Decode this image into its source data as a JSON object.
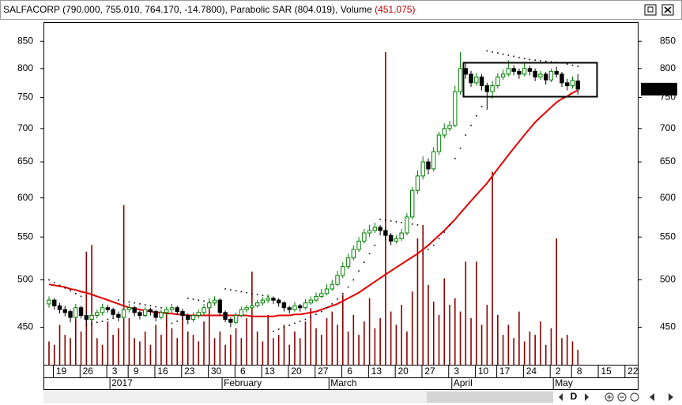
{
  "chart_data": {
    "type": "candlestick",
    "title": "SALFACORP (790.000, 755.010, 764.170, -14.7800), Parabolic SAR (804.019), Volume ",
    "title_volume": "(451,075)",
    "log_scale": true,
    "ylim": [
      414,
      887
    ],
    "yticks": [
      850,
      800,
      750,
      700,
      650,
      600,
      550,
      500,
      450
    ],
    "y2lim": [
      0,
      10300000
    ],
    "last_price": {
      "value": 764.17,
      "label": "764.170"
    },
    "toolbar_label": "D",
    "categories": [
      null,
      null,
      "19",
      null,
      null,
      null,
      null,
      "26",
      null,
      null,
      null,
      null,
      "3",
      null,
      null,
      null,
      "9",
      null,
      null,
      null,
      null,
      "16",
      null,
      null,
      null,
      null,
      "23",
      null,
      null,
      null,
      null,
      "30",
      null,
      null,
      null,
      null,
      "6",
      null,
      null,
      null,
      null,
      "13",
      null,
      null,
      null,
      null,
      "20",
      null,
      null,
      null,
      null,
      "27",
      null,
      null,
      null,
      null,
      "6",
      null,
      null,
      null,
      null,
      "13",
      null,
      null,
      null,
      null,
      "20",
      null,
      null,
      null,
      null,
      "27",
      null,
      null,
      null,
      null,
      "3",
      null,
      null,
      null,
      null,
      "10",
      null,
      null,
      null,
      "17",
      null,
      null,
      null,
      null,
      "24",
      null,
      null,
      null,
      null,
      "2",
      null,
      null,
      null,
      "8",
      null,
      null,
      null,
      null,
      "15",
      null,
      null,
      null,
      null,
      "22"
    ],
    "months": [
      null,
      null,
      null,
      null,
      null,
      null,
      null,
      null,
      null,
      null,
      null,
      null,
      "2017",
      null,
      null,
      null,
      null,
      null,
      null,
      null,
      null,
      null,
      null,
      null,
      null,
      null,
      null,
      null,
      null,
      null,
      null,
      null,
      null,
      "February",
      null,
      null,
      null,
      null,
      null,
      null,
      null,
      null,
      null,
      null,
      null,
      null,
      null,
      null,
      null,
      null,
      null,
      null,
      null,
      "March",
      null,
      null,
      null,
      null,
      null,
      null,
      null,
      null,
      null,
      null,
      null,
      null,
      null,
      null,
      null,
      null,
      null,
      null,
      null,
      null,
      null,
      null,
      "April",
      null,
      null,
      null,
      null,
      null,
      null,
      null,
      null,
      null,
      null,
      null,
      null,
      null,
      null,
      null,
      null,
      null,
      null,
      "May",
      null,
      null,
      null,
      null,
      null,
      null,
      null,
      null,
      null,
      null,
      null,
      null,
      null,
      null
    ],
    "candle_colors": {
      "up": "#008000",
      "down": "#000000"
    },
    "candles": [
      [
        474,
        482,
        470,
        478
      ],
      [
        478,
        480,
        468,
        472
      ],
      [
        472,
        475,
        464,
        468
      ],
      [
        468,
        472,
        461,
        465
      ],
      [
        466,
        468,
        455,
        460
      ],
      [
        460,
        474,
        458,
        470
      ],
      [
        470,
        472,
        459,
        462
      ],
      [
        462,
        465,
        454,
        458
      ],
      [
        458,
        466,
        455,
        462
      ],
      [
        462,
        468,
        459,
        465
      ],
      [
        465,
        474,
        462,
        470
      ],
      [
        470,
        473,
        465,
        468
      ],
      [
        468,
        470,
        460,
        463
      ],
      [
        463,
        466,
        456,
        460
      ],
      [
        460,
        472,
        458,
        468
      ],
      [
        468,
        474,
        465,
        470
      ],
      [
        470,
        472,
        461,
        465
      ],
      [
        465,
        467,
        458,
        462
      ],
      [
        462,
        471,
        460,
        468
      ],
      [
        468,
        470,
        462,
        466
      ],
      [
        466,
        468,
        456,
        460
      ],
      [
        460,
        468,
        458,
        465
      ],
      [
        465,
        471,
        462,
        468
      ],
      [
        468,
        474,
        465,
        470
      ],
      [
        470,
        472,
        463,
        466
      ],
      [
        466,
        469,
        459,
        462
      ],
      [
        462,
        464,
        453,
        458
      ],
      [
        458,
        465,
        455,
        462
      ],
      [
        462,
        468,
        459,
        465
      ],
      [
        465,
        474,
        462,
        470
      ],
      [
        470,
        480,
        468,
        475
      ],
      [
        475,
        482,
        472,
        478
      ],
      [
        478,
        480,
        462,
        465
      ],
      [
        465,
        467,
        455,
        458
      ],
      [
        458,
        460,
        450,
        455
      ],
      [
        455,
        465,
        453,
        462
      ],
      [
        462,
        471,
        460,
        468
      ],
      [
        468,
        473,
        465,
        470
      ],
      [
        470,
        476,
        467,
        472
      ],
      [
        472,
        478,
        470,
        475
      ],
      [
        475,
        481,
        472,
        478
      ],
      [
        478,
        484,
        475,
        480
      ],
      [
        480,
        482,
        474,
        478
      ],
      [
        478,
        480,
        471,
        475
      ],
      [
        475,
        477,
        466,
        470
      ],
      [
        470,
        472,
        464,
        468
      ],
      [
        468,
        476,
        466,
        472
      ],
      [
        472,
        474,
        466,
        470
      ],
      [
        470,
        479,
        468,
        475
      ],
      [
        475,
        482,
        473,
        478
      ],
      [
        478,
        486,
        476,
        482
      ],
      [
        482,
        490,
        480,
        485
      ],
      [
        485,
        495,
        483,
        490
      ],
      [
        490,
        500,
        488,
        495
      ],
      [
        495,
        510,
        493,
        505
      ],
      [
        505,
        520,
        502,
        515
      ],
      [
        515,
        530,
        512,
        525
      ],
      [
        525,
        540,
        522,
        535
      ],
      [
        535,
        550,
        532,
        545
      ],
      [
        545,
        560,
        542,
        555
      ],
      [
        555,
        565,
        550,
        558
      ],
      [
        558,
        568,
        555,
        562
      ],
      [
        562,
        565,
        552,
        558
      ],
      [
        558,
        562,
        546,
        552
      ],
      [
        552,
        555,
        540,
        545
      ],
      [
        545,
        552,
        542,
        548
      ],
      [
        548,
        560,
        545,
        555
      ],
      [
        555,
        580,
        552,
        575
      ],
      [
        575,
        615,
        572,
        610
      ],
      [
        610,
        638,
        605,
        630
      ],
      [
        630,
        658,
        625,
        650
      ],
      [
        650,
        655,
        632,
        640
      ],
      [
        640,
        672,
        636,
        665
      ],
      [
        665,
        695,
        660,
        690
      ],
      [
        690,
        708,
        685,
        700
      ],
      [
        700,
        712,
        696,
        705
      ],
      [
        705,
        770,
        702,
        760
      ],
      [
        760,
        830,
        755,
        800
      ],
      [
        800,
        812,
        782,
        790
      ],
      [
        790,
        796,
        768,
        775
      ],
      [
        775,
        792,
        770,
        785
      ],
      [
        785,
        790,
        762,
        770
      ],
      [
        770,
        775,
        730,
        760
      ],
      [
        760,
        778,
        748,
        770
      ],
      [
        770,
        792,
        765,
        785
      ],
      [
        785,
        798,
        780,
        790
      ],
      [
        790,
        815,
        786,
        800
      ],
      [
        800,
        806,
        788,
        795
      ],
      [
        795,
        800,
        782,
        790
      ],
      [
        790,
        810,
        786,
        800
      ],
      [
        800,
        805,
        788,
        795
      ],
      [
        795,
        800,
        778,
        785
      ],
      [
        785,
        796,
        780,
        790
      ],
      [
        790,
        794,
        772,
        780
      ],
      [
        780,
        800,
        776,
        795
      ],
      [
        795,
        803,
        784,
        790
      ],
      [
        790,
        794,
        768,
        775
      ],
      [
        775,
        782,
        762,
        770
      ],
      [
        770,
        786,
        765,
        778.95
      ],
      [
        778,
        790,
        755.01,
        764.17
      ]
    ],
    "moving_average": {
      "color": "#e00000",
      "values": [
        495,
        494,
        493,
        492,
        490,
        489,
        487,
        486,
        484,
        482,
        480,
        478,
        476,
        474,
        472,
        470,
        469,
        468,
        467,
        466,
        465,
        465,
        464,
        464,
        463,
        463,
        462,
        462,
        462,
        462,
        462,
        462,
        462,
        462,
        462,
        462,
        462,
        462,
        461,
        461,
        461,
        461,
        461,
        462,
        462,
        462,
        463,
        463,
        464,
        465,
        466,
        468,
        470,
        472,
        474,
        477,
        480,
        483,
        486,
        490,
        494,
        498,
        502,
        506,
        510,
        514,
        518,
        522,
        526,
        530,
        535,
        540,
        546,
        552,
        558,
        565,
        572,
        580,
        588,
        596,
        604,
        612,
        620,
        630,
        640,
        650,
        660,
        670,
        680,
        690,
        700,
        710,
        718,
        726,
        734,
        742,
        748,
        752,
        758,
        762
      ]
    },
    "sar": {
      "color": "#000000",
      "values": [
        500,
        497,
        494,
        491,
        488,
        485,
        482,
        452,
        453,
        455,
        456,
        458,
        459,
        478,
        477,
        476,
        475,
        474,
        473,
        472,
        471,
        470,
        452,
        454,
        456,
        458,
        480,
        479,
        478,
        477,
        476,
        475,
        474,
        490,
        489,
        488,
        487,
        486,
        485,
        484,
        483,
        482,
        446,
        448,
        450,
        452,
        454,
        456,
        458,
        460,
        463,
        466,
        470,
        474,
        479,
        485,
        492,
        500,
        510,
        520,
        530,
        540,
        572,
        571,
        570,
        569,
        568,
        567,
        566,
        565,
        530,
        535,
        540,
        548,
        556,
        565,
        655,
        670,
        690,
        705,
        720,
        735,
        832,
        830,
        828,
        826,
        824,
        822,
        820,
        818,
        816,
        815,
        814,
        813,
        812,
        811,
        810,
        808,
        806,
        804.019
      ]
    },
    "volume": {
      "color": "#8b0000",
      "axis": "y2",
      "values": [
        700000,
        600000,
        1200000,
        900000,
        800000,
        1500000,
        1000000,
        3400000,
        3600000,
        800000,
        600000,
        1300000,
        900000,
        1100000,
        4800000,
        1400000,
        800000,
        700000,
        1000000,
        600000,
        1200000,
        900000,
        1600000,
        1100000,
        800000,
        1500000,
        1000000,
        900000,
        700000,
        1300000,
        1800000,
        800000,
        1000000,
        600000,
        900000,
        1100000,
        800000,
        1400000,
        2800000,
        1000000,
        700000,
        1500000,
        800000,
        900000,
        1200000,
        600000,
        1000000,
        800000,
        1300000,
        1700000,
        1100000,
        900000,
        1400000,
        1600000,
        1200000,
        2100000,
        1000000,
        1500000,
        900000,
        1300000,
        2000000,
        1100000,
        1400000,
        9400000,
        1600000,
        1200000,
        1800000,
        1000000,
        2200000,
        3800000,
        4200000,
        2400000,
        1900000,
        1500000,
        2600000,
        1800000,
        2000000,
        1600000,
        3100000,
        1400000,
        3100000,
        1200000,
        1800000,
        5800000,
        1500000,
        900000,
        1200000,
        800000,
        1600000,
        700000,
        1000000,
        900000,
        1300000,
        600000,
        1100000,
        3800000,
        800000,
        900000,
        700000,
        451075
      ]
    }
  }
}
